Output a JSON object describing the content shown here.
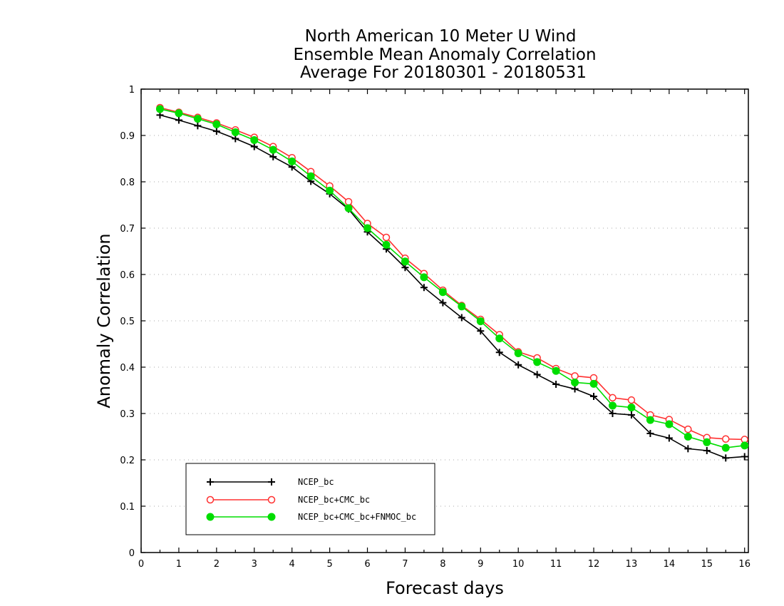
{
  "chart_data": {
    "type": "line",
    "title": [
      "North American 10 Meter U Wind",
      "Ensemble Mean Anomaly Correlation",
      "Average For 20180301 - 20180531"
    ],
    "xlabel": "Forecast days",
    "ylabel": "Anomaly Correlation",
    "xlim": [
      0,
      16.1
    ],
    "ylim": [
      0,
      1
    ],
    "xticks": [
      "0",
      "1",
      "2",
      "3",
      "4",
      "5",
      "6",
      "7",
      "8",
      "9",
      "10",
      "11",
      "12",
      "13",
      "14",
      "15",
      "16"
    ],
    "yticks": [
      "0",
      "0.1",
      "0.2",
      "0.3",
      "0.4",
      "0.5",
      "0.6",
      "0.7",
      "0.8",
      "0.9",
      "1"
    ],
    "grid": true,
    "legend_position": "bottom-left",
    "x": [
      0.5,
      1,
      1.5,
      2,
      2.5,
      3,
      3.5,
      4,
      4.5,
      5,
      5.5,
      6,
      6.5,
      7,
      7.5,
      8,
      8.5,
      9,
      9.5,
      10,
      10.5,
      11,
      11.5,
      12,
      12.5,
      13,
      13.5,
      14,
      14.5,
      15,
      15.5,
      16
    ],
    "series": [
      {
        "name": "NCEP_bc",
        "color": "#000000",
        "marker": "plus",
        "values": [
          0.944,
          0.933,
          0.921,
          0.909,
          0.893,
          0.876,
          0.854,
          0.832,
          0.801,
          0.774,
          0.741,
          0.692,
          0.655,
          0.615,
          0.572,
          0.539,
          0.507,
          0.478,
          0.432,
          0.405,
          0.384,
          0.363,
          0.353,
          0.337,
          0.3,
          0.297,
          0.257,
          0.247,
          0.224,
          0.22,
          0.204,
          0.207
        ]
      },
      {
        "name": "NCEP_bc+CMC_bc",
        "color": "#ff3030",
        "marker": "open-circle",
        "values": [
          0.96,
          0.95,
          0.939,
          0.927,
          0.912,
          0.896,
          0.876,
          0.852,
          0.822,
          0.791,
          0.757,
          0.71,
          0.68,
          0.635,
          0.602,
          0.566,
          0.533,
          0.503,
          0.47,
          0.433,
          0.42,
          0.397,
          0.381,
          0.377,
          0.334,
          0.329,
          0.297,
          0.287,
          0.266,
          0.248,
          0.245,
          0.244
        ]
      },
      {
        "name": "NCEP_bc+CMC_bc+FNMOC_bc",
        "color": "#00dd00",
        "marker": "filled-circle",
        "values": [
          0.957,
          0.948,
          0.936,
          0.924,
          0.907,
          0.89,
          0.869,
          0.844,
          0.812,
          0.781,
          0.743,
          0.7,
          0.664,
          0.628,
          0.594,
          0.562,
          0.531,
          0.499,
          0.462,
          0.43,
          0.411,
          0.392,
          0.367,
          0.364,
          0.317,
          0.313,
          0.286,
          0.277,
          0.25,
          0.238,
          0.226,
          0.231
        ]
      }
    ]
  }
}
